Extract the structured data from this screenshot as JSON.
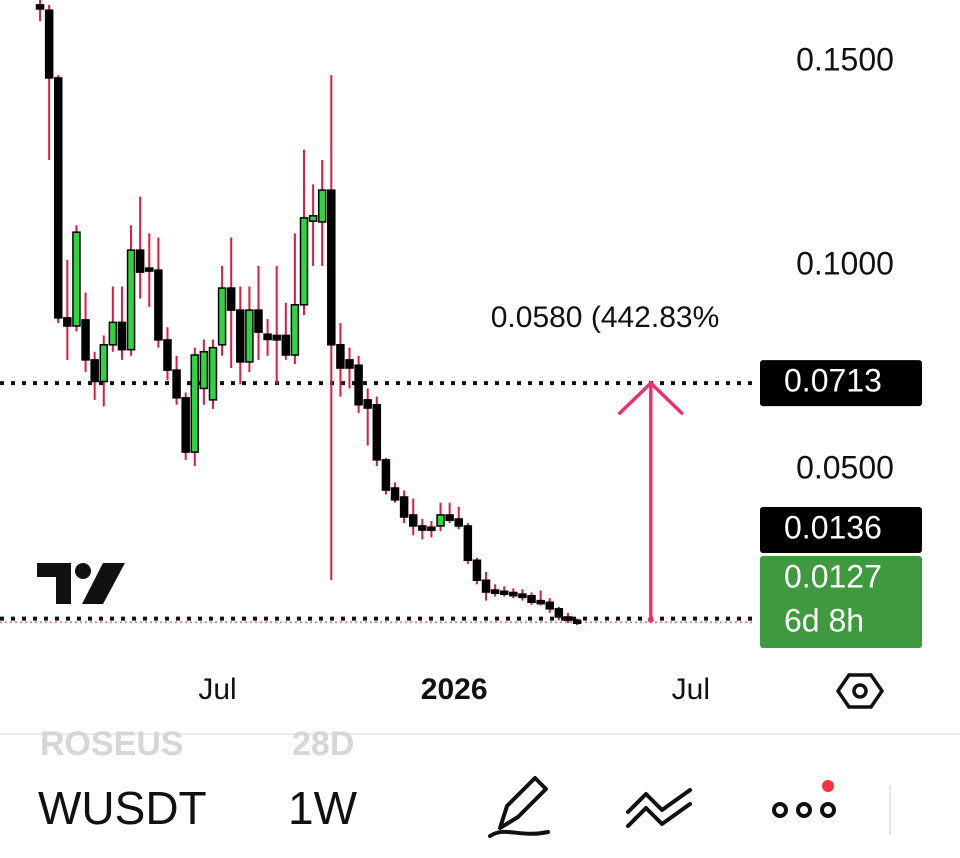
{
  "chart_data": {
    "type": "candlestick",
    "x": [
      0,
      1,
      2,
      3,
      4,
      5,
      6,
      7,
      8,
      9,
      10,
      11,
      12,
      13,
      14,
      15,
      16,
      17,
      18,
      19,
      20,
      21,
      22,
      23,
      24,
      25,
      26,
      27,
      28,
      29,
      30,
      31,
      32,
      33,
      34,
      35,
      36,
      37,
      38,
      39,
      40,
      41,
      42,
      43,
      44,
      45,
      46,
      47,
      48,
      49,
      50,
      51,
      52,
      53,
      54,
      55,
      56,
      57,
      58,
      59
    ],
    "open": [
      0.164,
      0.1627,
      0.1461,
      0.0873,
      0.0853,
      0.0868,
      0.077,
      0.0717,
      0.0807,
      0.0862,
      0.0795,
      0.1039,
      0.0995,
      0.099,
      0.0819,
      0.0745,
      0.0677,
      0.0544,
      0.07,
      0.0672,
      0.0807,
      0.0946,
      0.0892,
      0.0765,
      0.0892,
      0.0833,
      0.083,
      0.083,
      0.0782,
      0.0905,
      0.111,
      0.1108,
      0.1186,
      0.0807,
      0.077,
      0.0757,
      0.0672,
      0.066,
      0.0525,
      0.0456,
      0.0434,
      0.039,
      0.0363,
      0.036,
      0.0363,
      0.039,
      0.038,
      0.0363,
      0.0279,
      0.023,
      0.0206,
      0.0203,
      0.02,
      0.0196,
      0.0192,
      0.018,
      0.0176,
      0.016,
      0.014,
      0.0132
    ],
    "high": [
      0.1652,
      0.164,
      0.1468,
      0.1015,
      0.11,
      0.0935,
      0.079,
      0.083,
      0.095,
      0.095,
      0.11,
      0.117,
      0.108,
      0.107,
      0.085,
      0.078,
      0.069,
      0.08,
      0.082,
      0.082,
      0.1,
      0.107,
      0.095,
      0.095,
      0.1,
      0.087,
      0.1,
      0.091,
      0.108,
      0.1285,
      0.12,
      0.126,
      0.1468,
      0.086,
      0.08,
      0.078,
      0.07,
      0.068,
      0.053,
      0.047,
      0.045,
      0.043,
      0.038,
      0.0375,
      0.042,
      0.042,
      0.041,
      0.037,
      0.0285,
      0.025,
      0.022,
      0.0215,
      0.021,
      0.0208,
      0.02,
      0.0205,
      0.0186,
      0.0165,
      0.015,
      0.0136
    ],
    "low": [
      0.16,
      0.126,
      0.086,
      0.077,
      0.084,
      0.074,
      0.0672,
      0.0656,
      0.079,
      0.077,
      0.078,
      0.092,
      0.09,
      0.08,
      0.072,
      0.066,
      0.0525,
      0.051,
      0.066,
      0.065,
      0.078,
      0.075,
      0.071,
      0.074,
      0.077,
      0.078,
      0.071,
      0.077,
      0.076,
      0.088,
      0.1,
      0.1,
      0.023,
      0.068,
      0.07,
      0.064,
      0.056,
      0.051,
      0.044,
      0.042,
      0.037,
      0.034,
      0.033,
      0.0335,
      0.035,
      0.037,
      0.0355,
      0.027,
      0.022,
      0.018,
      0.019,
      0.019,
      0.0186,
      0.018,
      0.017,
      0.0168,
      0.015,
      0.0132,
      0.0125,
      0.012
    ],
    "close": [
      0.163,
      0.1461,
      0.0873,
      0.0853,
      0.1083,
      0.077,
      0.0717,
      0.0807,
      0.0862,
      0.0795,
      0.1039,
      0.0985,
      0.099,
      0.0819,
      0.0745,
      0.0677,
      0.0544,
      0.0782,
      0.079,
      0.08,
      0.0946,
      0.0892,
      0.0765,
      0.0892,
      0.0838,
      0.082,
      0.0819,
      0.0782,
      0.0905,
      0.1118,
      0.1123,
      0.1186,
      0.0807,
      0.075,
      0.075,
      0.066,
      0.0652,
      0.0525,
      0.0451,
      0.0427,
      0.0385,
      0.0363,
      0.0353,
      0.0355,
      0.039,
      0.0377,
      0.0363,
      0.0279,
      0.023,
      0.0201,
      0.0198,
      0.0196,
      0.0192,
      0.0188,
      0.0176,
      0.0176,
      0.016,
      0.014,
      0.0132,
      0.0127
    ],
    "up_color": "#2fd53f",
    "down_color": "#000000",
    "wick_color": "#e5173f",
    "xlim": [
      -4.4,
      79.1
    ],
    "xticks": [
      {
        "value": 19.5,
        "label": "Jul"
      },
      {
        "value": 45.5,
        "label": "2026"
      },
      {
        "value": 71.5,
        "label": "Jul"
      }
    ],
    "ylim": [
      0.0059,
      0.1652
    ],
    "yticks": [
      {
        "value": 0.15,
        "label": "0.1500"
      },
      {
        "value": 0.1,
        "label": "0.1000"
      },
      {
        "value": 0.05,
        "label": "0.0500"
      }
    ],
    "price_lines": [
      {
        "value": 0.0713,
        "label": "0.0713"
      },
      {
        "value": 0.0136,
        "label": "0.0136"
      }
    ],
    "current_price": {
      "value": 0.0127,
      "label": "0.0127",
      "countdown": "6d 8h",
      "color": "#3f9a3f"
    },
    "measure": {
      "label": "0.0580 (442.83%",
      "from": 0.0133,
      "to": 0.0713,
      "x": 67.1,
      "color": "#e8336b"
    }
  },
  "toolbar": {
    "ghost_symbol": "ROSEUS",
    "ghost_interval": "28D",
    "symbol": "WUSDT",
    "interval": "1W"
  }
}
